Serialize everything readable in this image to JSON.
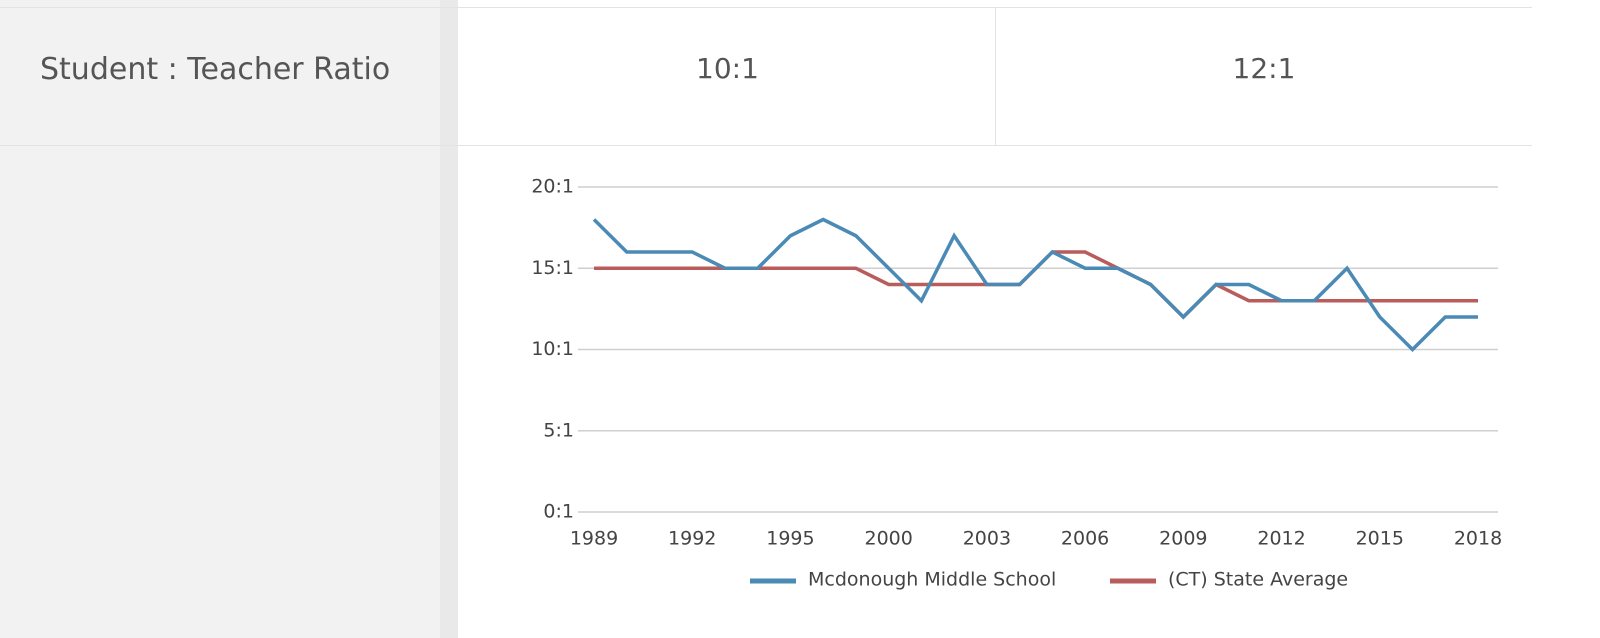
{
  "table": {
    "label": "Student : Teacher Ratio",
    "cells": [
      "10:1",
      "12:1"
    ]
  },
  "chart_data": {
    "type": "line",
    "categories": [
      "1989",
      null,
      null,
      "1992",
      null,
      null,
      "1995",
      null,
      null,
      "2000",
      null,
      null,
      "2003",
      null,
      null,
      "2006",
      null,
      null,
      "2009",
      null,
      null,
      "2012",
      null,
      null,
      "2015",
      null,
      null,
      "2018"
    ],
    "series": [
      {
        "name": "Mcdonough Middle School",
        "color": "#4a8ab5",
        "values": [
          18,
          16,
          16,
          16,
          15,
          15,
          17,
          18,
          17,
          15,
          13,
          17,
          14,
          14,
          16,
          15,
          15,
          14,
          12,
          14,
          14,
          13,
          13,
          15,
          12,
          10,
          12,
          12
        ]
      },
      {
        "name": "(CT) State Average",
        "color": "#b85c5c",
        "values": [
          15,
          15,
          15,
          15,
          15,
          15,
          15,
          15,
          15,
          14,
          14,
          14,
          14,
          14,
          16,
          16,
          15,
          14,
          12,
          14,
          13,
          13,
          13,
          13,
          13,
          13,
          13,
          13
        ]
      }
    ],
    "ylim": [
      0,
      20
    ],
    "yticks": [
      {
        "value": 0,
        "label": "0:1"
      },
      {
        "value": 5,
        "label": "5:1"
      },
      {
        "value": 10,
        "label": "10:1"
      },
      {
        "value": 15,
        "label": "15:1"
      },
      {
        "value": 20,
        "label": "20:1"
      }
    ],
    "grid": true,
    "legend": "bottom"
  }
}
